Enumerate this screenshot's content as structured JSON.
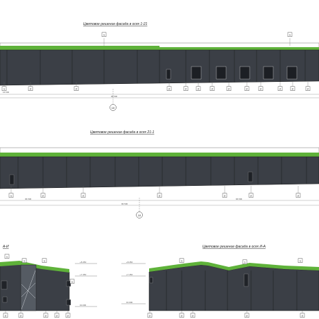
{
  "elevation_1": {
    "title": "Цветовое решение фасада в осях 1-21",
    "callouts_top": [
      "1",
      "1"
    ],
    "callouts_bottom": [
      "1",
      "2",
      "2",
      "2",
      "2",
      "2",
      "2",
      "2",
      "2",
      "2",
      "2",
      "2",
      "2"
    ],
    "axis_mark": "10"
  },
  "elevation_2": {
    "title": "Цветовое решение фасада в осях 21-1",
    "callouts_bottom": [
      "1",
      "2",
      "2",
      "2",
      "2",
      "2",
      "2"
    ],
    "axis_mark": "10"
  },
  "elevation_3": {
    "title": "А-И",
    "level_top": "+8.450",
    "level_mid": "+7.450",
    "level_zero": "±0.000"
  },
  "elevation_4": {
    "title": "Цветовое решение фасада в осях И-А",
    "level_top": "+8.450",
    "level_mid": "+7.450",
    "level_zero": "±0.000"
  },
  "colors": {
    "roof_band": "#5fb23a",
    "wall": "#3b3f46",
    "outline": "#1a1a1a"
  }
}
